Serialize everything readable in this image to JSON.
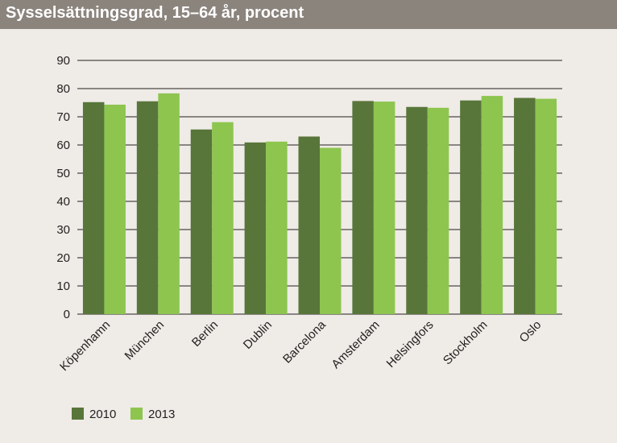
{
  "colors": {
    "background": "#efebe6",
    "title_bar": "#8b847d",
    "title_text": "#ffffff",
    "series_2010": "#58763a",
    "series_2013": "#8dc54f",
    "grid": "#231f20"
  },
  "chart_data": {
    "type": "bar",
    "title": "Sysselsättningsgrad, 15–64 år, procent",
    "categories": [
      "Köpenhamn",
      "München",
      "Berlin",
      "Dublin",
      "Barcelona",
      "Amsterdam",
      "Helsingfors",
      "Stockholm",
      "Oslo"
    ],
    "series": [
      {
        "name": "2010",
        "values": [
          75.2,
          75.5,
          65.5,
          60.9,
          63.0,
          75.6,
          73.5,
          75.8,
          76.7
        ]
      },
      {
        "name": "2013",
        "values": [
          74.3,
          78.3,
          68.1,
          61.2,
          59.0,
          75.4,
          73.2,
          77.4,
          76.4
        ]
      }
    ],
    "yticks": [
      "0",
      "10",
      "20",
      "30",
      "40",
      "50",
      "60",
      "70",
      "80",
      "90"
    ],
    "ylim": [
      0,
      90
    ],
    "xlabel": "",
    "ylabel": "",
    "grid": true,
    "legend": "bottom-left"
  }
}
